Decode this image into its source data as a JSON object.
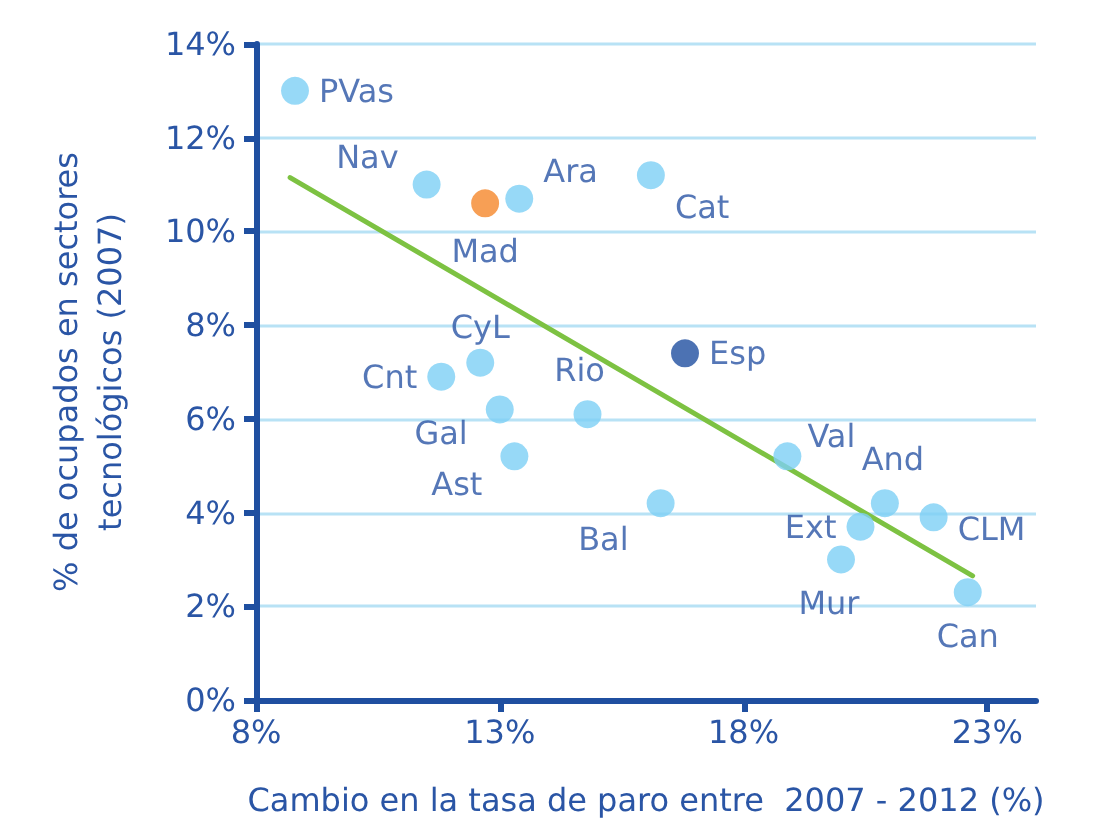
{
  "chart_data": {
    "type": "scatter",
    "xlabel": "Cambio en la tasa de paro entre  2007 - 2012 (%)",
    "ylabel": "% de ocupados en sectores\ntecnológicos (2007)",
    "xlim": [
      8,
      24
    ],
    "xticks": [
      {
        "value": 8,
        "label": "8%"
      },
      {
        "value": 13,
        "label": "13%"
      },
      {
        "value": 18,
        "label": "18%"
      },
      {
        "value": 23,
        "label": "23%"
      }
    ],
    "ylim": [
      0,
      14
    ],
    "yticks": [
      {
        "value": 0,
        "label": "0%"
      },
      {
        "value": 2,
        "label": "2%"
      },
      {
        "value": 4,
        "label": "4%"
      },
      {
        "value": 6,
        "label": "6%"
      },
      {
        "value": 8,
        "label": "8%"
      },
      {
        "value": 10,
        "label": "10%"
      },
      {
        "value": 12,
        "label": "12%"
      },
      {
        "value": 14,
        "label": "14%"
      }
    ],
    "grid": "y",
    "marker": "circle",
    "series": [
      {
        "x": [
          8.8,
          11.5,
          12.7,
          13.4,
          16.1,
          16.8,
          12.6,
          11.8,
          13.0,
          14.8,
          13.3,
          16.3,
          18.9,
          20.9,
          21.9,
          20.4,
          20.0,
          22.6
        ],
        "values": [
          13.0,
          11.0,
          10.6,
          10.7,
          11.2,
          7.4,
          7.2,
          6.9,
          6.2,
          6.1,
          5.2,
          4.2,
          5.2,
          4.2,
          3.9,
          3.7,
          3.0,
          2.3
        ],
        "colors": [
          "#7dcff5",
          "#7dcff5",
          "#f5872a",
          "#7dcff5",
          "#7dcff5",
          "#1f4fa0",
          "#7dcff5",
          "#7dcff5",
          "#7dcff5",
          "#7dcff5",
          "#7dcff5",
          "#7dcff5",
          "#7dcff5",
          "#7dcff5",
          "#7dcff5",
          "#7dcff5",
          "#7dcff5",
          "#7dcff5"
        ],
        "value_labels": [
          "PVas",
          "Nav",
          "Mad",
          "Ara",
          "Cat",
          "Esp",
          "CyL",
          "Cnt",
          "Gal",
          "Rio",
          "Ast",
          "Bal",
          "Val",
          "And",
          "CLM",
          "Ext",
          "Mur",
          "Can"
        ]
      },
      {
        "type": "line",
        "color": "#7dc242",
        "x": [
          8.7,
          22.7
        ],
        "values": [
          11.15,
          2.65
        ],
        "marker": "none",
        "line_style": "solid"
      }
    ]
  }
}
